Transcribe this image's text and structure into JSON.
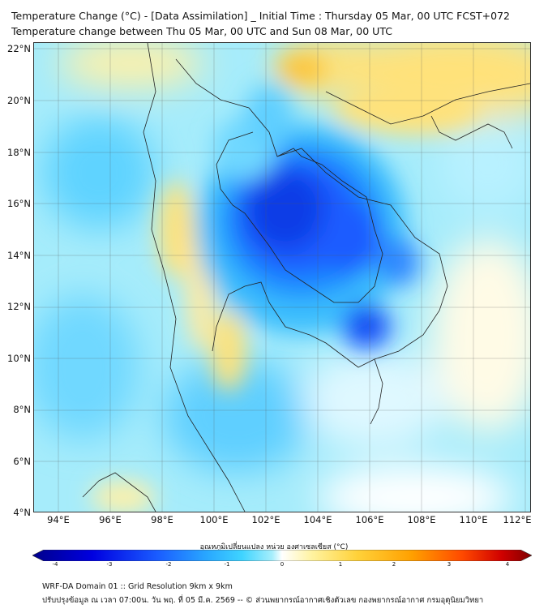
{
  "title": {
    "line1": "Temperature Change (°C) - [Data Assimilation] _ Initial Time : Thursday 05 Mar, 00 UTC FCST+072",
    "line2": "Temperature change between Thu 05 Mar, 00 UTC and Sun 08 Mar, 00 UTC"
  },
  "axes": {
    "lat_labels": [
      "22°N",
      "20°N",
      "18°N",
      "16°N",
      "14°N",
      "12°N",
      "10°N",
      "8°N",
      "6°N",
      "4°N"
    ],
    "lon_labels": [
      "94°E",
      "96°E",
      "98°E",
      "100°E",
      "102°E",
      "104°E",
      "106°E",
      "108°E",
      "110°E",
      "112°E"
    ]
  },
  "legend": {
    "title": "อุณหภูมิเปลี่ยนแปลง หน่วย องศาเซลเซียส (°C)",
    "ticks": [
      "-4",
      "-3",
      "-2",
      "-1",
      "0",
      "1",
      "2",
      "3",
      "4"
    ],
    "colors": [
      "#00008b",
      "#0000e0",
      "#1a5cff",
      "#29a8ff",
      "#3fd4ff",
      "#a6eefc",
      "#ffffff",
      "#fff3a0",
      "#ffd23a",
      "#ffa000",
      "#ff4a00",
      "#d00000",
      "#800000"
    ]
  },
  "footer": {
    "line1": "WRF-DA Domain 01 :: Grid Resolution 9km x 9km",
    "line2": "ปรับปรุงข้อมูล ณ เวลา 07:00น. วัน พฤ. ที่ 05 มี.ค. 2569 -- © ส่วนพยากรณ์อากาศเชิงตัวเลข กองพยากรณ์อากาศ กรมอุตุนิยมวิทยา"
  }
}
